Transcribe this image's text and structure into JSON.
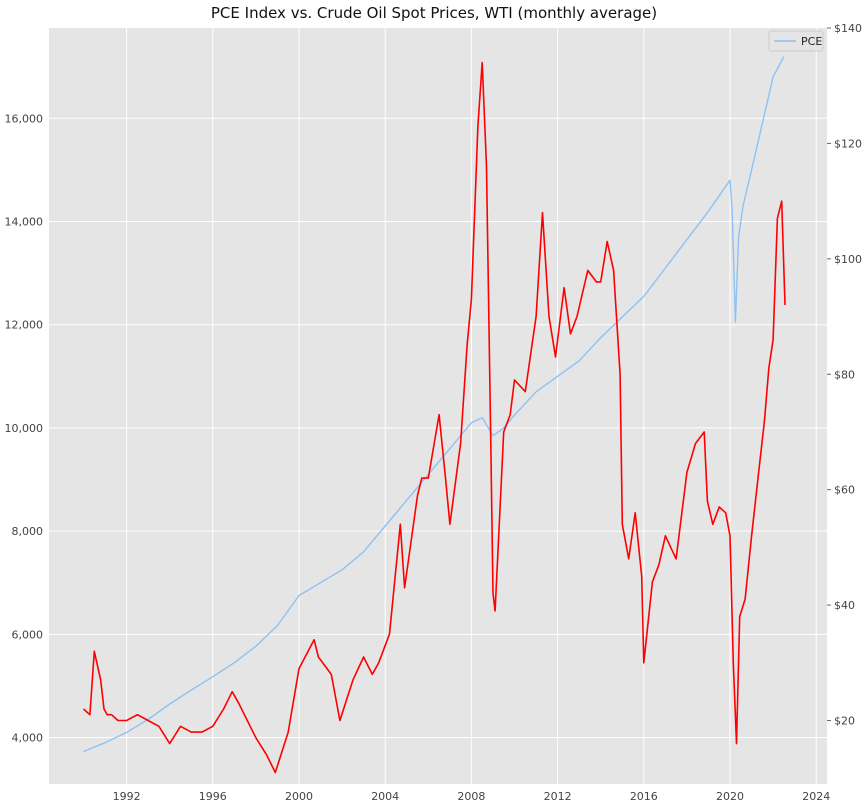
{
  "chart_data": {
    "type": "line",
    "title": "PCE Index vs. Crude Oil Spot Prices, WTI (monthly average)",
    "xlabel": "",
    "ylabel_left": "",
    "ylabel_right": "",
    "x_ticks": [
      "1992",
      "1996",
      "2000",
      "2004",
      "2008",
      "2012",
      "2016",
      "2020",
      "2024"
    ],
    "y_left_ticks": [
      "4,000",
      "6,000",
      "8,000",
      "10,000",
      "12,000",
      "14,000",
      "16,000"
    ],
    "y_right_ticks": [
      "$20",
      "$40",
      "$60",
      "$80",
      "$100",
      "$120",
      "$140"
    ],
    "xlim": [
      1988.4,
      2024.5
    ],
    "ylim_left": [
      3100,
      17750
    ],
    "ylim_right": [
      9,
      140
    ],
    "grid": true,
    "legend": {
      "placement": "top-right",
      "entries": [
        "PCE"
      ]
    },
    "colors": {
      "pce": "#8cc2f5",
      "oil": "#ff0000",
      "background": "#e5e5e5",
      "grid": "#ffffff"
    },
    "series": [
      {
        "name": "PCE",
        "axis": "left",
        "x": [
          1990.0,
          1991.0,
          1992.0,
          1993.0,
          1994.0,
          1995.0,
          1996.0,
          1997.0,
          1998.0,
          1999.0,
          2000.0,
          2001.0,
          2002.0,
          2003.0,
          2004.0,
          2005.0,
          2006.0,
          2007.0,
          2008.0,
          2008.5,
          2009.0,
          2009.5,
          2010.0,
          2011.0,
          2012.0,
          2013.0,
          2014.0,
          2015.0,
          2016.0,
          2017.0,
          2018.0,
          2019.0,
          2020.0,
          2020.1,
          2020.25,
          2020.4,
          2020.6,
          2021.0,
          2021.5,
          2022.0,
          2022.5
        ],
        "values": [
          3730,
          3900,
          4100,
          4350,
          4650,
          4920,
          5180,
          5450,
          5770,
          6170,
          6750,
          7000,
          7250,
          7600,
          8100,
          8600,
          9100,
          9600,
          10100,
          10200,
          9850,
          10000,
          10250,
          10700,
          11000,
          11300,
          11750,
          12150,
          12550,
          13100,
          13650,
          14200,
          14800,
          14200,
          12050,
          13700,
          14300,
          15000,
          15900,
          16800,
          17200
        ]
      },
      {
        "name": "",
        "axis": "right",
        "x": [
          1990.0,
          1990.3,
          1990.5,
          1990.8,
          1990.95,
          1991.1,
          1991.3,
          1991.6,
          1992.0,
          1992.5,
          1993.0,
          1993.5,
          1994.0,
          1994.5,
          1995.0,
          1995.5,
          1996.0,
          1996.5,
          1996.9,
          1997.2,
          1997.6,
          1998.0,
          1998.5,
          1998.9,
          1999.5,
          2000.0,
          2000.7,
          2000.9,
          2001.5,
          2001.9,
          2002.5,
          2003.0,
          2003.4,
          2003.7,
          2004.2,
          2004.7,
          2004.9,
          2005.5,
          2005.7,
          2006.0,
          2006.5,
          2006.8,
          2007.0,
          2007.5,
          2007.8,
          2008.0,
          2008.3,
          2008.5,
          2008.7,
          2008.9,
          2009.0,
          2009.1,
          2009.5,
          2009.8,
          2010.0,
          2010.5,
          2011.0,
          2011.3,
          2011.6,
          2011.9,
          2012.3,
          2012.6,
          2012.9,
          2013.4,
          2013.8,
          2014.0,
          2014.3,
          2014.6,
          2014.9,
          2015.0,
          2015.3,
          2015.6,
          2015.9,
          2016.0,
          2016.4,
          2016.7,
          2017.0,
          2017.5,
          2018.0,
          2018.4,
          2018.8,
          2018.95,
          2019.2,
          2019.5,
          2019.8,
          2020.0,
          2020.15,
          2020.3,
          2020.45,
          2020.7,
          2021.0,
          2021.3,
          2021.6,
          2021.8,
          2022.0,
          2022.2,
          2022.4,
          2022.55
        ],
        "values": [
          22,
          21,
          32,
          27,
          22,
          21,
          21,
          20,
          20,
          21,
          20,
          19,
          16,
          19,
          18,
          18,
          19,
          22,
          25,
          23,
          20,
          17,
          14,
          11,
          18,
          29,
          34,
          31,
          28,
          20,
          27,
          31,
          28,
          30,
          35,
          54,
          43,
          59,
          62,
          62,
          73,
          62,
          54,
          68,
          85,
          93,
          123,
          134,
          116,
          68,
          42,
          39,
          70,
          73,
          79,
          77,
          90,
          108,
          90,
          83,
          95,
          87,
          90,
          98,
          96,
          96,
          103,
          98,
          80,
          54,
          48,
          56,
          45,
          30,
          44,
          47,
          52,
          48,
          63,
          68,
          70,
          58,
          54,
          57,
          56,
          52,
          30,
          16,
          38,
          41,
          52,
          62,
          72,
          81,
          86,
          107,
          110,
          92
        ]
      }
    ]
  }
}
